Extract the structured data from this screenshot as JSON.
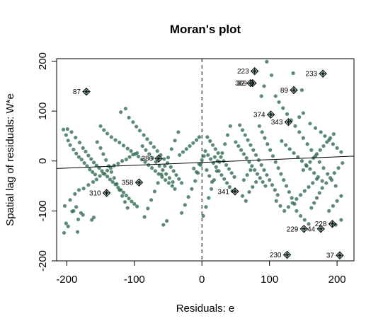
{
  "chart_data": {
    "type": "scatter",
    "title": "Moran's plot",
    "xlabel": "Residuals: e",
    "ylabel": "Spatial lag of residuals: W*e",
    "xlim": [
      -215,
      225
    ],
    "ylim": [
      -200,
      205
    ],
    "x_ticks": [
      -200,
      -100,
      0,
      100,
      200
    ],
    "y_ticks": [
      -200,
      -100,
      0,
      100,
      200
    ],
    "x_tick_labels": [
      "-200",
      "-100",
      "0",
      "100",
      "200"
    ],
    "y_tick_labels": [
      "-200",
      "-100",
      "0",
      "100",
      "200"
    ],
    "point_color": "#2f6b4f",
    "regression_line": {
      "intercept": -2.9,
      "slope": 0.056
    },
    "vertical_reference_x": 0,
    "influential_points": [
      {
        "label": "87",
        "x": -171,
        "y": 139
      },
      {
        "label": "223",
        "x": 78,
        "y": 180
      },
      {
        "label": "233",
        "x": 179,
        "y": 175
      },
      {
        "label": "369",
        "x": 75,
        "y": 156
      },
      {
        "label": "32",
        "x": 72,
        "y": 156
      },
      {
        "label": "89",
        "x": 136,
        "y": 142
      },
      {
        "label": "374",
        "x": 102,
        "y": 93
      },
      {
        "label": "343",
        "x": 128,
        "y": 78
      },
      {
        "label": "386",
        "x": -64,
        "y": 5
      },
      {
        "label": "358",
        "x": -93,
        "y": -43
      },
      {
        "label": "310",
        "x": -141,
        "y": -64
      },
      {
        "label": "341",
        "x": 49,
        "y": -61
      },
      {
        "label": "228",
        "x": 193,
        "y": -126
      },
      {
        "label": "229",
        "x": 151,
        "y": -136
      },
      {
        "label": "44",
        "x": 176,
        "y": -136
      },
      {
        "label": "230",
        "x": 126,
        "y": -188
      },
      {
        "label": "37",
        "x": 204,
        "y": -189
      }
    ],
    "points": [
      [
        -204,
        -144
      ],
      [
        -201,
        -125
      ],
      [
        -198,
        -131
      ],
      [
        -192,
        -101
      ],
      [
        -190,
        -100
      ],
      [
        -186,
        -92
      ],
      [
        -184,
        -142
      ],
      [
        -183,
        -117
      ],
      [
        -179,
        -104
      ],
      [
        -176,
        -108
      ],
      [
        -163,
        -118
      ],
      [
        -160,
        -113
      ],
      [
        -203,
        -90
      ],
      [
        -195,
        -78
      ],
      [
        -188,
        -66
      ],
      [
        -182,
        -58
      ],
      [
        -175,
        -55
      ],
      [
        -168,
        -48
      ],
      [
        -161,
        -42
      ],
      [
        -156,
        -37
      ],
      [
        -151,
        -30
      ],
      [
        -146,
        -25
      ],
      [
        -140,
        -19
      ],
      [
        -135,
        -14
      ],
      [
        -130,
        -9
      ],
      [
        -124,
        -5
      ],
      [
        -118,
        0
      ],
      [
        -112,
        3
      ],
      [
        -107,
        8
      ],
      [
        -102,
        13
      ],
      [
        -96,
        16
      ],
      [
        -205,
        63
      ],
      [
        -201,
        52
      ],
      [
        -198,
        41
      ],
      [
        -195,
        32
      ],
      [
        -190,
        23
      ],
      [
        -186,
        15
      ],
      [
        -182,
        8
      ],
      [
        -178,
        3
      ],
      [
        -174,
        -4
      ],
      [
        -170,
        -10
      ],
      [
        -166,
        -17
      ],
      [
        -162,
        -22
      ],
      [
        -158,
        -27
      ],
      [
        -199,
        64
      ],
      [
        -193,
        58
      ],
      [
        -187,
        47
      ],
      [
        -181,
        37
      ],
      [
        -176,
        26
      ],
      [
        -172,
        19
      ],
      [
        -168,
        11
      ],
      [
        -164,
        4
      ],
      [
        -160,
        -3
      ],
      [
        -156,
        -9
      ],
      [
        -152,
        -14
      ],
      [
        -148,
        -20
      ],
      [
        -144,
        -26
      ],
      [
        -140,
        -31
      ],
      [
        -136,
        -37
      ],
      [
        -132,
        -42
      ],
      [
        -128,
        -47
      ],
      [
        -124,
        -53
      ],
      [
        -120,
        -58
      ],
      [
        -116,
        -63
      ],
      [
        -112,
        -69
      ],
      [
        -108,
        -75
      ],
      [
        -104,
        -81
      ],
      [
        -100,
        -86
      ],
      [
        -96,
        -91
      ],
      [
        -150,
        70
      ],
      [
        -145,
        62
      ],
      [
        -140,
        55
      ],
      [
        -134,
        48
      ],
      [
        -128,
        42
      ],
      [
        -122,
        37
      ],
      [
        -116,
        31
      ],
      [
        -110,
        25
      ],
      [
        -105,
        20
      ],
      [
        -99,
        14
      ],
      [
        -94,
        9
      ],
      [
        -89,
        3
      ],
      [
        -84,
        -2
      ],
      [
        -79,
        -8
      ],
      [
        -74,
        -14
      ],
      [
        -69,
        -20
      ],
      [
        -64,
        -26
      ],
      [
        -59,
        -32
      ],
      [
        -54,
        -38
      ],
      [
        -49,
        -44
      ],
      [
        -44,
        -50
      ],
      [
        -40,
        -56
      ],
      [
        -120,
        98
      ],
      [
        -113,
        105
      ],
      [
        -108,
        87
      ],
      [
        -102,
        78
      ],
      [
        -97,
        69
      ],
      [
        -92,
        61
      ],
      [
        -86,
        52
      ],
      [
        -81,
        44
      ],
      [
        -76,
        36
      ],
      [
        -71,
        28
      ],
      [
        -66,
        20
      ],
      [
        -61,
        12
      ],
      [
        -56,
        4
      ],
      [
        -51,
        -4
      ],
      [
        -46,
        -12
      ],
      [
        -42,
        -20
      ],
      [
        -38,
        -28
      ],
      [
        -34,
        -36
      ],
      [
        -30,
        -44
      ],
      [
        -155,
        38
      ],
      [
        -150,
        26
      ],
      [
        -146,
        14
      ],
      [
        -142,
        2
      ],
      [
        -138,
        -10
      ],
      [
        -134,
        -22
      ],
      [
        -130,
        -34
      ],
      [
        -126,
        -46
      ],
      [
        -122,
        -58
      ],
      [
        -118,
        -70
      ],
      [
        -114,
        -82
      ],
      [
        -110,
        -94
      ],
      [
        -85,
        -112
      ],
      [
        -80,
        -95
      ],
      [
        -75,
        -78
      ],
      [
        -70,
        -61
      ],
      [
        -65,
        -44
      ],
      [
        -60,
        -27
      ],
      [
        -55,
        -10
      ],
      [
        -50,
        7
      ],
      [
        -45,
        24
      ],
      [
        -40,
        41
      ],
      [
        -35,
        58
      ],
      [
        -57,
        -128
      ],
      [
        -52,
        -120
      ],
      [
        -30,
        -104
      ],
      [
        -25,
        -88
      ],
      [
        -20,
        -72
      ],
      [
        -15,
        -56
      ],
      [
        -10,
        -40
      ],
      [
        -6,
        -24
      ],
      [
        -2,
        -8
      ],
      [
        -88,
        30
      ],
      [
        -83,
        22
      ],
      [
        -78,
        14
      ],
      [
        -73,
        6
      ],
      [
        -68,
        -2
      ],
      [
        -63,
        -10
      ],
      [
        -58,
        -18
      ],
      [
        -53,
        -26
      ],
      [
        -48,
        -34
      ],
      [
        -43,
        -42
      ],
      [
        -33,
        12
      ],
      [
        -28,
        18
      ],
      [
        -23,
        24
      ],
      [
        -18,
        30
      ],
      [
        -13,
        36
      ],
      [
        -8,
        42
      ],
      [
        -4,
        48
      ],
      [
        2,
        -110
      ],
      [
        6,
        -92
      ],
      [
        10,
        -74
      ],
      [
        14,
        -56
      ],
      [
        18,
        -38
      ],
      [
        22,
        -20
      ],
      [
        26,
        -2
      ],
      [
        30,
        16
      ],
      [
        34,
        34
      ],
      [
        38,
        52
      ],
      [
        42,
        70
      ],
      [
        5,
        20
      ],
      [
        9,
        12
      ],
      [
        13,
        4
      ],
      [
        17,
        -4
      ],
      [
        21,
        -12
      ],
      [
        25,
        -20
      ],
      [
        29,
        -28
      ],
      [
        33,
        -36
      ],
      [
        37,
        -44
      ],
      [
        41,
        -52
      ],
      [
        45,
        -60
      ],
      [
        8,
        48
      ],
      [
        12,
        40
      ],
      [
        16,
        32
      ],
      [
        20,
        24
      ],
      [
        24,
        16
      ],
      [
        28,
        8
      ],
      [
        32,
        0
      ],
      [
        36,
        -8
      ],
      [
        40,
        -16
      ],
      [
        44,
        -24
      ],
      [
        48,
        -32
      ],
      [
        50,
        38
      ],
      [
        54,
        30
      ],
      [
        58,
        22
      ],
      [
        62,
        14
      ],
      [
        66,
        6
      ],
      [
        70,
        -2
      ],
      [
        74,
        -10
      ],
      [
        78,
        -18
      ],
      [
        82,
        -26
      ],
      [
        86,
        -34
      ],
      [
        90,
        -42
      ],
      [
        94,
        -50
      ],
      [
        56,
        72
      ],
      [
        60,
        62
      ],
      [
        64,
        52
      ],
      [
        68,
        42
      ],
      [
        72,
        32
      ],
      [
        76,
        22
      ],
      [
        80,
        12
      ],
      [
        84,
        2
      ],
      [
        88,
        -8
      ],
      [
        92,
        -18
      ],
      [
        96,
        -28
      ],
      [
        100,
        -38
      ],
      [
        104,
        -48
      ],
      [
        108,
        -58
      ],
      [
        112,
        -68
      ],
      [
        85,
        70
      ],
      [
        89,
        58
      ],
      [
        93,
        46
      ],
      [
        97,
        34
      ],
      [
        101,
        22
      ],
      [
        105,
        10
      ],
      [
        109,
        -2
      ],
      [
        113,
        -14
      ],
      [
        117,
        -26
      ],
      [
        121,
        -38
      ],
      [
        125,
        -50
      ],
      [
        129,
        -62
      ],
      [
        133,
        -74
      ],
      [
        137,
        -86
      ],
      [
        96,
        199
      ],
      [
        103,
        172
      ],
      [
        109,
        130
      ],
      [
        114,
        118
      ],
      [
        120,
        106
      ],
      [
        126,
        94
      ],
      [
        132,
        82
      ],
      [
        138,
        70
      ],
      [
        144,
        58
      ],
      [
        150,
        46
      ],
      [
        156,
        34
      ],
      [
        162,
        22
      ],
      [
        168,
        10
      ],
      [
        174,
        -2
      ],
      [
        180,
        -14
      ],
      [
        186,
        -26
      ],
      [
        192,
        -38
      ],
      [
        198,
        -50
      ],
      [
        92,
        150
      ],
      [
        88,
        130
      ],
      [
        135,
        176
      ],
      [
        148,
        142
      ],
      [
        150,
        96
      ],
      [
        144,
        88
      ],
      [
        160,
        75
      ],
      [
        168,
        66
      ],
      [
        176,
        58
      ],
      [
        182,
        50
      ],
      [
        188,
        42
      ],
      [
        194,
        34
      ],
      [
        200,
        26
      ],
      [
        206,
        18
      ],
      [
        140,
        -100
      ],
      [
        146,
        -110
      ],
      [
        152,
        -118
      ],
      [
        158,
        -126
      ],
      [
        162,
        -94
      ],
      [
        166,
        -84
      ],
      [
        170,
        -74
      ],
      [
        174,
        -64
      ],
      [
        178,
        -54
      ],
      [
        184,
        -44
      ],
      [
        190,
        -34
      ],
      [
        196,
        -24
      ],
      [
        202,
        -14
      ],
      [
        208,
        -4
      ],
      [
        110,
        -80
      ],
      [
        116,
        -90
      ],
      [
        122,
        -100
      ],
      [
        128,
        -92
      ],
      [
        134,
        -84
      ],
      [
        140,
        -76
      ],
      [
        146,
        -68
      ],
      [
        152,
        -60
      ],
      [
        158,
        -52
      ],
      [
        164,
        -44
      ],
      [
        170,
        -36
      ],
      [
        150,
        -18
      ],
      [
        155,
        -10
      ],
      [
        160,
        -2
      ],
      [
        165,
        6
      ],
      [
        170,
        14
      ],
      [
        175,
        22
      ],
      [
        180,
        30
      ],
      [
        185,
        38
      ],
      [
        190,
        46
      ],
      [
        195,
        54
      ],
      [
        118,
        40
      ],
      [
        124,
        32
      ],
      [
        130,
        24
      ],
      [
        136,
        16
      ],
      [
        142,
        8
      ],
      [
        148,
        0
      ],
      [
        154,
        -8
      ],
      [
        160,
        -16
      ],
      [
        166,
        -24
      ],
      [
        172,
        -32
      ],
      [
        178,
        -40
      ],
      [
        -12,
        -15
      ],
      [
        -8,
        -22
      ],
      [
        -4,
        -6
      ],
      [
        0,
        2
      ],
      [
        3,
        10
      ],
      [
        7,
        -18
      ],
      [
        11,
        -30
      ],
      [
        15,
        -42
      ],
      [
        19,
        8
      ],
      [
        23,
        0
      ],
      [
        60,
        -70
      ],
      [
        65,
        -80
      ],
      [
        70,
        -62
      ],
      [
        75,
        -52
      ],
      [
        80,
        -42
      ],
      [
        62,
        -38
      ],
      [
        67,
        -28
      ],
      [
        72,
        -18
      ],
      [
        198,
        -128
      ],
      [
        206,
        -118
      ],
      [
        188,
        -100
      ],
      [
        194,
        -90
      ],
      [
        200,
        -80
      ],
      [
        206,
        -70
      ]
    ]
  }
}
